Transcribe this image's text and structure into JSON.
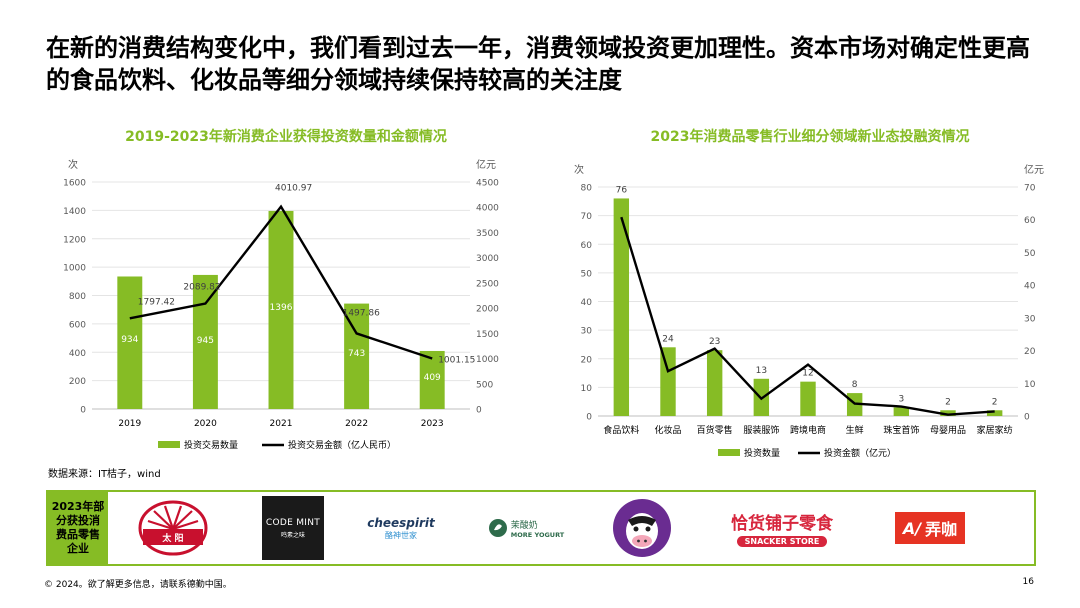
{
  "headline": "在新的消费结构变化中，我们看到过去一年，消费领域投资更加理性。资本市场对确定性更高的食品饮料、化妆品等细分领域持续保持较高的关注度",
  "colors": {
    "accent": "#86BC25",
    "line": "#000000",
    "text": "#595959"
  },
  "chart_data": [
    {
      "type": "bar",
      "title": "2019-2023年新消费企业获得投资数量和金额情况",
      "categories": [
        "2019",
        "2020",
        "2021",
        "2022",
        "2023"
      ],
      "left_unit": "次",
      "right_unit": "亿元",
      "ylim_left": [
        0,
        1600
      ],
      "yticks_left": [
        "0",
        "200",
        "400",
        "600",
        "800",
        "1000",
        "1200",
        "1400",
        "1600"
      ],
      "ylim_right": [
        0,
        4500
      ],
      "yticks_right": [
        "0",
        "500",
        "1000",
        "1500",
        "2000",
        "2500",
        "3000",
        "3500",
        "4000",
        "4500"
      ],
      "series": [
        {
          "name": "投资交易数量",
          "type": "bar",
          "axis": "left",
          "values": [
            934,
            945,
            1396,
            743,
            409
          ],
          "labels": [
            "934",
            "945",
            "1396",
            "743",
            "409"
          ]
        },
        {
          "name": "投资交易金额（亿人民币）",
          "type": "line",
          "axis": "right",
          "values": [
            1797.42,
            2089.82,
            4010.97,
            1497.86,
            1001.15
          ],
          "labels": [
            "1797.42",
            "2089.82",
            "4010.97",
            "1497.86",
            "1001.15"
          ]
        }
      ],
      "legend": "bottom",
      "grid": true
    },
    {
      "type": "bar",
      "title": "2023年消费品零售行业细分领域新业态投融资情况",
      "categories": [
        "食品饮料",
        "化妆品",
        "百货零售",
        "服装服饰",
        "跨境电商",
        "生鲜",
        "珠宝首饰",
        "母婴用品",
        "家居家纺"
      ],
      "left_unit": "次",
      "right_unit": "亿元",
      "ylim_left": [
        0,
        80
      ],
      "yticks_left": [
        "0",
        "10",
        "20",
        "30",
        "40",
        "50",
        "60",
        "70",
        "80"
      ],
      "ylim_right": [
        0,
        70
      ],
      "yticks_right": [
        "0",
        "10",
        "20",
        "30",
        "40",
        "50",
        "60",
        "70"
      ],
      "series": [
        {
          "name": "投资数量",
          "type": "bar",
          "axis": "left",
          "values": [
            76,
            24,
            23,
            13,
            12,
            8,
            3,
            2,
            2
          ],
          "labels": [
            "76",
            "24",
            "23",
            "13",
            "12",
            "8",
            "3",
            "2",
            "2"
          ]
        },
        {
          "name": "投资金额（亿元）",
          "type": "line",
          "axis": "right",
          "values": [
            60.8,
            13.7,
            20.6,
            5.3,
            15.7,
            3.8,
            2.9,
            0.4,
            1.4
          ]
        }
      ],
      "legend": "bottom",
      "grid": true
    }
  ],
  "source_note": "数据来源：IT桔子，wind",
  "brands": {
    "label": "2023年部分获投消费品零售企业",
    "items": [
      {
        "name": "太阳",
        "text": "太  阳",
        "icon": "sun-logo"
      },
      {
        "name": "CODE MINT",
        "text": "CODE MINT",
        "sub": "鸣素之味",
        "icon": "code-mint-logo"
      },
      {
        "name": "cheespirit",
        "text": "cheespirit",
        "sub": "酪神世家",
        "icon": "cheespirit-logo"
      },
      {
        "name": "茉酸奶 MORE YOGURT",
        "text": "茉酸奶",
        "sub": "MORE YOGURT",
        "icon": "more-yogurt-logo"
      },
      {
        "name": "cow mascot",
        "icon": "cow-logo"
      },
      {
        "name": "恰货铺子零食",
        "text": "恰货铺子零食",
        "sub": "SNACKER STORE",
        "icon": "snacker-store-logo"
      },
      {
        "name": "弄咖",
        "text": "弄咖",
        "icon": "nongka-logo"
      }
    ]
  },
  "footer": "© 2024。欲了解更多信息，请联系德勤中国。",
  "page_number": "16"
}
